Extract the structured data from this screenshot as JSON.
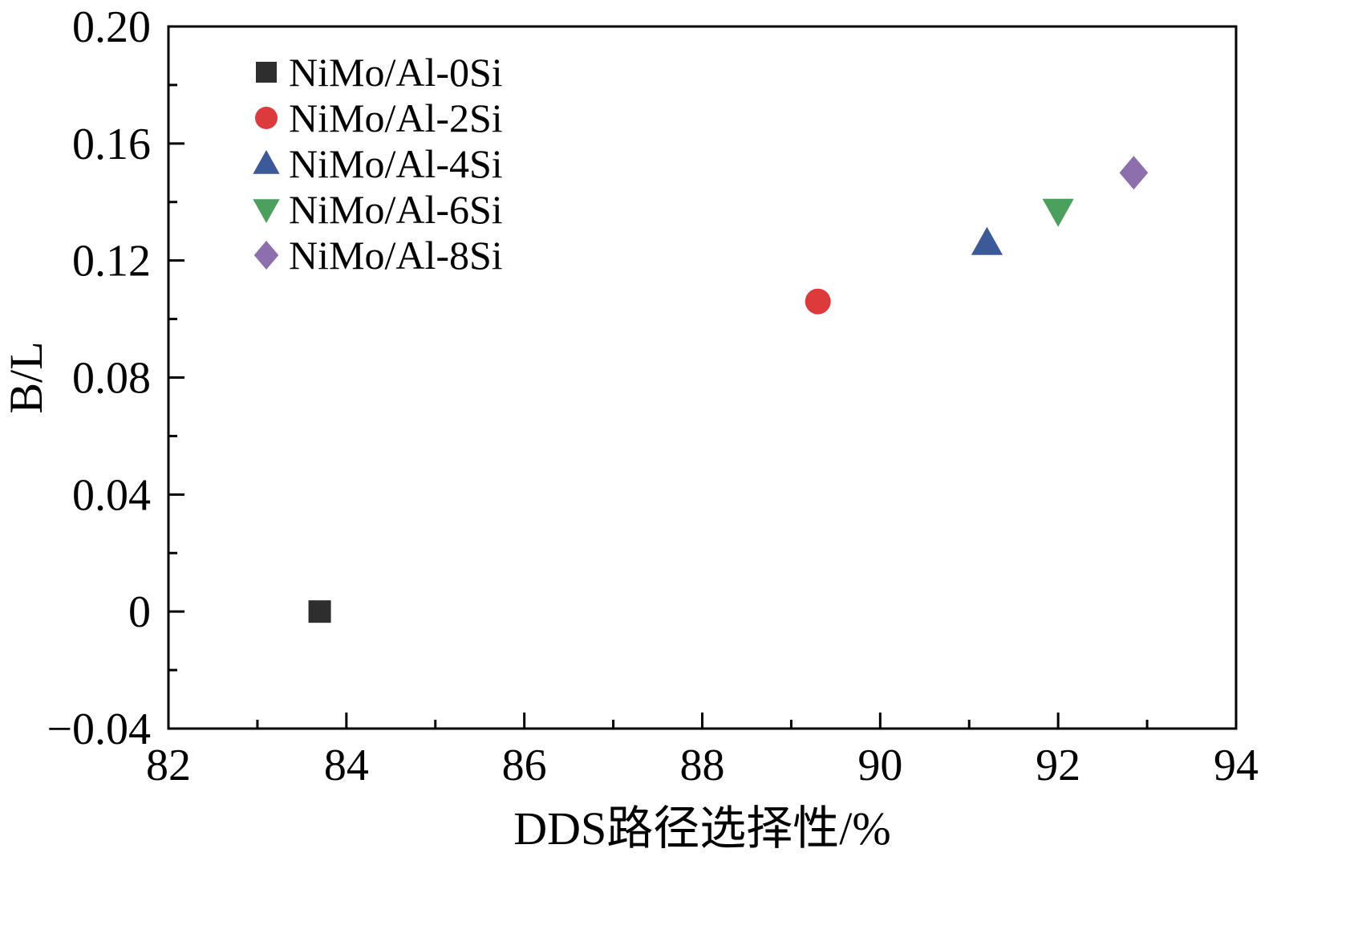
{
  "chart_data": {
    "type": "scatter",
    "title": "",
    "xlabel": "DDS路径选择性/%",
    "ylabel": "B/L",
    "xlim": [
      82,
      94
    ],
    "ylim": [
      -0.04,
      0.2
    ],
    "x_major_ticks": [
      82,
      84,
      86,
      88,
      90,
      92,
      94
    ],
    "x_tick_labels": [
      "82",
      "84",
      "86",
      "88",
      "90",
      "92",
      "94"
    ],
    "x_minor_step": 1,
    "y_major_ticks": [
      -0.04,
      0,
      0.04,
      0.08,
      0.12,
      0.16,
      0.2
    ],
    "y_tick_labels": [
      "−0.04",
      "0",
      "0.04",
      "0.08",
      "0.12",
      "0.16",
      "0.20"
    ],
    "y_minor_step": 0.02,
    "grid": false,
    "legend_position": "top-left",
    "axis_color": "#000000",
    "background_color": "#ffffff",
    "series": [
      {
        "name": "NiMo/Al-0Si",
        "marker": "square",
        "color": "#2e2e2e",
        "points": [
          [
            83.7,
            0.0
          ]
        ]
      },
      {
        "name": "NiMo/Al-2Si",
        "marker": "circle",
        "color": "#dd3a3c",
        "points": [
          [
            89.3,
            0.106
          ]
        ]
      },
      {
        "name": "NiMo/Al-4Si",
        "marker": "triangle-up",
        "color": "#3d5a98",
        "points": [
          [
            91.2,
            0.126
          ]
        ]
      },
      {
        "name": "NiMo/Al-6Si",
        "marker": "triangle-down",
        "color": "#4aa05c",
        "points": [
          [
            92.0,
            0.137
          ]
        ]
      },
      {
        "name": "NiMo/Al-8Si",
        "marker": "diamond",
        "color": "#8e6fae",
        "points": [
          [
            92.85,
            0.15
          ]
        ]
      }
    ]
  }
}
